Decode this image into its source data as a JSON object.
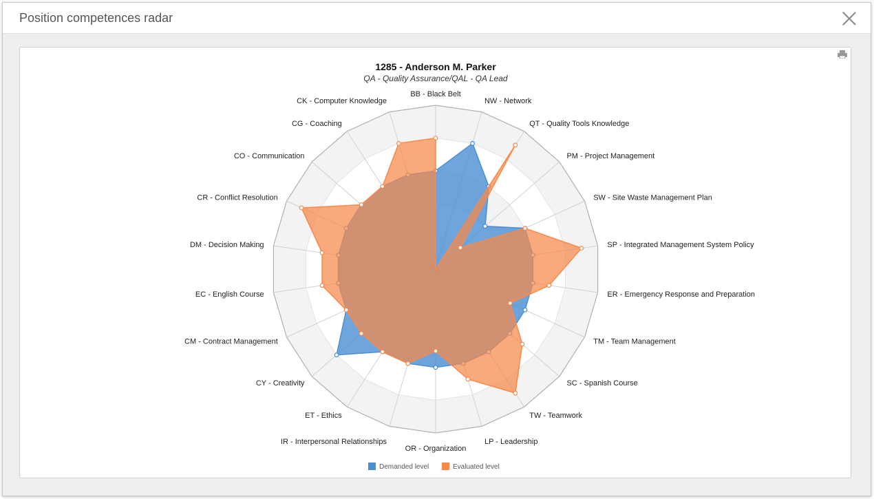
{
  "dialog": {
    "title": "Position competences radar"
  },
  "chart_data": {
    "type": "radar",
    "title": "1285 - Anderson M. Parker",
    "subtitle": "QA - Quality Assurance/QAL - QA Lead",
    "max": 5,
    "grid": true,
    "legend_position": "bottom-center",
    "categories": [
      "BB - Black Belt",
      "NW - Network",
      "QT - Quality Tools Knowledge",
      "PM - Project Management",
      "SW - Site Waste Management Plan",
      "SP - Integrated Management System Policy",
      "ER - Emergency Response and Preparation",
      "TM - Team Management",
      "SC - Spanish Course",
      "TW - Teamwork",
      "LP - Leadership",
      "OR - Organization",
      "IR - Interpersonal Relationships",
      "ET - Ethics",
      "CY - Creativity",
      "CM - Contract Management",
      "EC - English Course",
      "DM - Decision Making",
      "CR - Conflict Resolution",
      "CO - Communication",
      "CG - Coaching",
      "CK - Computer Knowledge"
    ],
    "series": [
      {
        "name": "Demanded level",
        "color": "#4a8fd4",
        "values": [
          3,
          4,
          3,
          2,
          3,
          3,
          3,
          3,
          3,
          3,
          3,
          3,
          3,
          3,
          4,
          3,
          3,
          3,
          3,
          3,
          3,
          3
        ]
      },
      {
        "name": "Evaluated level",
        "color": "#f7894a",
        "values": [
          4,
          0,
          4.5,
          1,
          3,
          4.5,
          3.5,
          2.5,
          3.5,
          4.5,
          3.5,
          2.5,
          3,
          3,
          3,
          3,
          3.5,
          3.5,
          4.5,
          3,
          3,
          4
        ]
      }
    ]
  }
}
